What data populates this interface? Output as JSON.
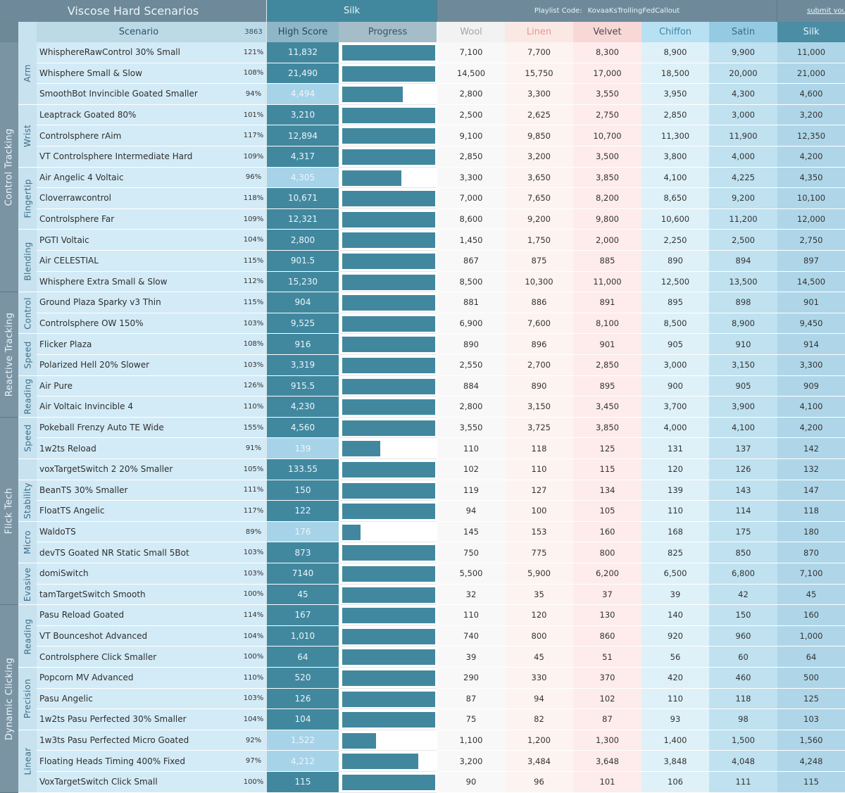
{
  "header": {
    "title": "Viscose Hard Scenarios",
    "rank_title": "Silk",
    "playlist_label": "Playlist Code:",
    "playlist_code": "KovaaKsTrollingFedCallout",
    "submit_link": "submit your",
    "col_scenario": "Scenario",
    "col_total": "3863",
    "col_highscore": "High Score",
    "col_progress": "Progress"
  },
  "colors": {
    "header_bg": "#6e8a9a",
    "category_bg": "#7a94a3",
    "subcategory_bg": "#c8e2ef",
    "scenario_bg": "#d3ebf6",
    "high_score_complete": "#41889f",
    "high_score_incomplete": "#a7d3e8",
    "progress_bar": "#41889f",
    "accent_silk": "#41889f"
  },
  "tiers": [
    {
      "name": "Wool",
      "header_bg": "#f2f2f2",
      "header_fg": "#a5a5a5",
      "cell_bg": "#f8f8f8"
    },
    {
      "name": "Linen",
      "header_bg": "#fae8e4",
      "header_fg": "#e19a8e",
      "cell_bg": "#fdf3f1"
    },
    {
      "name": "Velvet",
      "header_bg": "#f8d8d7",
      "header_fg": "#4a4a4a",
      "cell_bg": "#fdeceb"
    },
    {
      "name": "Chiffon",
      "header_bg": "#b7e1f3",
      "header_fg": "#3b86a6",
      "cell_bg": "#def1f9"
    },
    {
      "name": "Satin",
      "header_bg": "#95cae3",
      "header_fg": "#3b6c83",
      "cell_bg": "#bfe1f0"
    },
    {
      "name": "Silk",
      "header_bg": "#4a8da5",
      "header_fg": "#e5f3f9",
      "cell_bg": "#afd6e8"
    }
  ],
  "categories": [
    {
      "name": "Control Tracking",
      "rows": 12
    },
    {
      "name": "Reactive Tracking",
      "rows": 6
    },
    {
      "name": "Flick Tech",
      "rows": 9
    },
    {
      "name": "Dynamic Clicking",
      "rows": 9
    }
  ],
  "subcategories": [
    {
      "name": "Arm",
      "rows": 3
    },
    {
      "name": "Wrist",
      "rows": 3
    },
    {
      "name": "Fingertip",
      "rows": 3
    },
    {
      "name": "Blending",
      "rows": 3
    },
    {
      "name": "Control",
      "rows": 2
    },
    {
      "name": "Speed",
      "rows": 2
    },
    {
      "name": "Reading",
      "rows": 2
    },
    {
      "name": "Speed",
      "rows": 2
    },
    {
      "name": "",
      "rows": 1
    },
    {
      "name": "Stability",
      "rows": 2
    },
    {
      "name": "Micro",
      "rows": 2
    },
    {
      "name": "Evasive",
      "rows": 2
    },
    {
      "name": "Reading",
      "rows": 3
    },
    {
      "name": "Precision",
      "rows": 3
    },
    {
      "name": "Linear",
      "rows": 3
    }
  ],
  "rows": [
    {
      "scenario": "WhisphereRawControl 30% Small",
      "pct": "121%",
      "score": "11,832",
      "progress": 1.0,
      "tiers": [
        "7,100",
        "7,700",
        "8,300",
        "8,900",
        "9,900",
        "11,000"
      ]
    },
    {
      "scenario": "Whisphere Small & Slow",
      "pct": "108%",
      "score": "21,490",
      "progress": 1.0,
      "tiers": [
        "14,500",
        "15,750",
        "17,000",
        "18,500",
        "20,000",
        "21,000"
      ]
    },
    {
      "scenario": "SmoothBot Invincible Goated Smaller",
      "pct": "94%",
      "score": "4,494",
      "progress": 0.65,
      "tiers": [
        "2,800",
        "3,300",
        "3,550",
        "3,950",
        "4,300",
        "4,600"
      ]
    },
    {
      "scenario": "Leaptrack Goated 80%",
      "pct": "101%",
      "score": "3,210",
      "progress": 1.0,
      "tiers": [
        "2,500",
        "2,625",
        "2,750",
        "2,850",
        "3,000",
        "3,200"
      ]
    },
    {
      "scenario": "Controlsphere rAim",
      "pct": "117%",
      "score": "12,894",
      "progress": 1.0,
      "tiers": [
        "9,100",
        "9,850",
        "10,700",
        "11,300",
        "11,900",
        "12,350"
      ]
    },
    {
      "scenario": "VT Controlsphere Intermediate Hard",
      "pct": "109%",
      "score": "4,317",
      "progress": 1.0,
      "tiers": [
        "2,850",
        "3,200",
        "3,500",
        "3,800",
        "4,000",
        "4,200"
      ]
    },
    {
      "scenario": "Air Angelic 4 Voltaic",
      "pct": "96%",
      "score": "4,305",
      "progress": 0.64,
      "tiers": [
        "3,300",
        "3,650",
        "3,850",
        "4,100",
        "4,225",
        "4,350"
      ]
    },
    {
      "scenario": "Cloverrawcontrol",
      "pct": "118%",
      "score": "10,671",
      "progress": 1.0,
      "tiers": [
        "7,000",
        "7,650",
        "8,200",
        "8,650",
        "9,200",
        "10,100"
      ]
    },
    {
      "scenario": "Controlsphere Far",
      "pct": "109%",
      "score": "12,321",
      "progress": 1.0,
      "tiers": [
        "8,600",
        "9,200",
        "9,800",
        "10,600",
        "11,200",
        "12,000"
      ]
    },
    {
      "scenario": "PGTI Voltaic",
      "pct": "104%",
      "score": "2,800",
      "progress": 1.0,
      "tiers": [
        "1,450",
        "1,750",
        "2,000",
        "2,250",
        "2,500",
        "2,750"
      ]
    },
    {
      "scenario": "Air CELESTIAL",
      "pct": "115%",
      "score": "901.5",
      "progress": 1.0,
      "tiers": [
        "867",
        "875",
        "885",
        "890",
        "894",
        "897"
      ]
    },
    {
      "scenario": "Whisphere Extra Small & Slow",
      "pct": "112%",
      "score": "15,230",
      "progress": 1.0,
      "tiers": [
        "8,500",
        "10,300",
        "11,000",
        "12,500",
        "13,500",
        "14,500"
      ]
    },
    {
      "scenario": "Ground Plaza Sparky v3 Thin",
      "pct": "115%",
      "score": "904",
      "progress": 1.0,
      "tiers": [
        "881",
        "886",
        "891",
        "895",
        "898",
        "901"
      ]
    },
    {
      "scenario": "Controlsphere OW 150%",
      "pct": "103%",
      "score": "9,525",
      "progress": 1.0,
      "tiers": [
        "6,900",
        "7,600",
        "8,100",
        "8,500",
        "8,900",
        "9,450"
      ]
    },
    {
      "scenario": "Flicker Plaza",
      "pct": "108%",
      "score": "916",
      "progress": 1.0,
      "tiers": [
        "890",
        "896",
        "901",
        "905",
        "910",
        "914"
      ]
    },
    {
      "scenario": "Polarized Hell 20% Slower",
      "pct": "103%",
      "score": "3,319",
      "progress": 1.0,
      "tiers": [
        "2,550",
        "2,700",
        "2,850",
        "3,000",
        "3,150",
        "3,300"
      ]
    },
    {
      "scenario": "Air Pure",
      "pct": "126%",
      "score": "915.5",
      "progress": 1.0,
      "tiers": [
        "884",
        "890",
        "895",
        "900",
        "905",
        "909"
      ]
    },
    {
      "scenario": "Air Voltaic Invincible 4",
      "pct": "110%",
      "score": "4,230",
      "progress": 1.0,
      "tiers": [
        "2,800",
        "3,150",
        "3,450",
        "3,700",
        "3,900",
        "4,100"
      ]
    },
    {
      "scenario": "Pokeball Frenzy Auto TE Wide",
      "pct": "155%",
      "score": "4,560",
      "progress": 1.0,
      "tiers": [
        "3,550",
        "3,725",
        "3,850",
        "4,000",
        "4,100",
        "4,200"
      ]
    },
    {
      "scenario": "1w2ts Reload",
      "pct": "91%",
      "score": "139",
      "progress": 0.41,
      "tiers": [
        "110",
        "118",
        "125",
        "131",
        "137",
        "142"
      ]
    },
    {
      "scenario": "voxTargetSwitch 2 20% Smaller",
      "pct": "105%",
      "score": "133.55",
      "progress": 1.0,
      "tiers": [
        "102",
        "110",
        "115",
        "120",
        "126",
        "132"
      ]
    },
    {
      "scenario": "BeanTS 30% Smaller",
      "pct": "111%",
      "score": "150",
      "progress": 1.0,
      "tiers": [
        "119",
        "127",
        "134",
        "139",
        "143",
        "147"
      ]
    },
    {
      "scenario": "FloatTS Angelic",
      "pct": "117%",
      "score": "122",
      "progress": 1.0,
      "tiers": [
        "94",
        "100",
        "105",
        "110",
        "114",
        "118"
      ]
    },
    {
      "scenario": "WaldoTS",
      "pct": "89%",
      "score": "176",
      "progress": 0.2,
      "tiers": [
        "145",
        "153",
        "160",
        "168",
        "175",
        "180"
      ]
    },
    {
      "scenario": "devTS Goated NR Static Small 5Bot",
      "pct": "103%",
      "score": "873",
      "progress": 1.0,
      "tiers": [
        "750",
        "775",
        "800",
        "825",
        "850",
        "870"
      ]
    },
    {
      "scenario": "domiSwitch",
      "pct": "103%",
      "score": "7140",
      "progress": 1.0,
      "tiers": [
        "5,500",
        "5,900",
        "6,200",
        "6,500",
        "6,800",
        "7,100"
      ]
    },
    {
      "scenario": "tamTargetSwitch Smooth",
      "pct": "100%",
      "score": "45",
      "progress": 1.0,
      "tiers": [
        "32",
        "35",
        "37",
        "39",
        "42",
        "45"
      ]
    },
    {
      "scenario": "Pasu Reload Goated",
      "pct": "114%",
      "score": "167",
      "progress": 1.0,
      "tiers": [
        "110",
        "120",
        "130",
        "140",
        "150",
        "160"
      ]
    },
    {
      "scenario": "VT Bounceshot Advanced",
      "pct": "104%",
      "score": "1,010",
      "progress": 1.0,
      "tiers": [
        "740",
        "800",
        "860",
        "920",
        "960",
        "1,000"
      ]
    },
    {
      "scenario": "Controlsphere Click Smaller",
      "pct": "100%",
      "score": "64",
      "progress": 1.0,
      "tiers": [
        "39",
        "45",
        "51",
        "56",
        "60",
        "64"
      ]
    },
    {
      "scenario": "Popcorn MV Advanced",
      "pct": "110%",
      "score": "520",
      "progress": 1.0,
      "tiers": [
        "290",
        "330",
        "370",
        "420",
        "460",
        "500"
      ]
    },
    {
      "scenario": "Pasu Angelic",
      "pct": "103%",
      "score": "126",
      "progress": 1.0,
      "tiers": [
        "87",
        "94",
        "102",
        "110",
        "118",
        "125"
      ]
    },
    {
      "scenario": "1w2ts Pasu Perfected 30% Smaller",
      "pct": "104%",
      "score": "104",
      "progress": 1.0,
      "tiers": [
        "75",
        "82",
        "87",
        "93",
        "98",
        "103"
      ]
    },
    {
      "scenario": "1w3ts Pasu Perfected Micro Goated",
      "pct": "92%",
      "score": "1,522",
      "progress": 0.36,
      "tiers": [
        "1,100",
        "1,200",
        "1,300",
        "1,400",
        "1,500",
        "1,560"
      ]
    },
    {
      "scenario": "Floating Heads Timing 400% Fixed",
      "pct": "97%",
      "score": "4,212",
      "progress": 0.82,
      "tiers": [
        "3,200",
        "3,484",
        "3,648",
        "3,848",
        "4,048",
        "4,248"
      ]
    },
    {
      "scenario": "VoxTargetSwitch Click Small",
      "pct": "100%",
      "score": "115",
      "progress": 1.0,
      "tiers": [
        "90",
        "96",
        "101",
        "106",
        "111",
        "115"
      ]
    }
  ]
}
